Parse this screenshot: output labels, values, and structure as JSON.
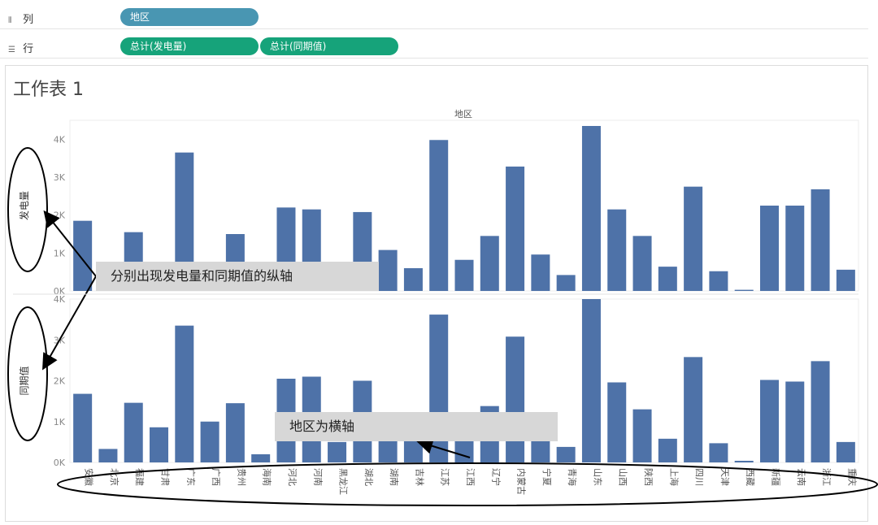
{
  "shelves": {
    "columns": {
      "label": "列",
      "pills": [
        "地区"
      ]
    },
    "rows": {
      "label": "行",
      "pills": [
        "总计(发电量)",
        "总计(同期值)"
      ]
    }
  },
  "sheet_title": "工作表 1",
  "colors": {
    "bar": "#4e72a8",
    "pill_dimension": "#4996b2",
    "pill_measure": "#16a37a"
  },
  "annotations": {
    "vertical_axes": "分别出现发电量和同期值的纵轴",
    "horizontal_axis": "地区为横轴"
  },
  "chart_data": {
    "type": "bar",
    "title": "地区",
    "categories": [
      "安徽",
      "北京",
      "福建",
      "甘肃",
      "广东",
      "广西",
      "贵州",
      "海南",
      "河北",
      "河南",
      "黑龙江",
      "湖北",
      "湖南",
      "吉林",
      "江苏",
      "江西",
      "辽宁",
      "内蒙古",
      "宁夏",
      "青海",
      "山东",
      "山西",
      "陕西",
      "上海",
      "四川",
      "天津",
      "西藏",
      "新疆",
      "云南",
      "浙江",
      "重庆"
    ],
    "series": [
      {
        "name": "发电量",
        "ylim": [
          0,
          4500
        ],
        "ticks": [
          "0K",
          "1K",
          "2K",
          "3K",
          "4K"
        ],
        "values": [
          1850,
          0,
          1550,
          350,
          3650,
          420,
          1500,
          0,
          2200,
          2150,
          0,
          2080,
          1080,
          600,
          3980,
          820,
          1450,
          3280,
          960,
          420,
          4350,
          2150,
          1450,
          640,
          2750,
          520,
          30,
          2250,
          2250,
          2680,
          560
        ]
      },
      {
        "name": "同期值",
        "ylim": [
          0,
          4000
        ],
        "ticks": [
          "0K",
          "1K",
          "2K",
          "3K",
          "4K"
        ],
        "values": [
          1680,
          330,
          1460,
          860,
          3350,
          1000,
          1450,
          200,
          2050,
          2100,
          500,
          2000,
          700,
          900,
          3620,
          750,
          1380,
          3080,
          750,
          380,
          4000,
          1960,
          1300,
          580,
          2580,
          470,
          40,
          2020,
          1980,
          2480,
          500
        ]
      }
    ]
  }
}
